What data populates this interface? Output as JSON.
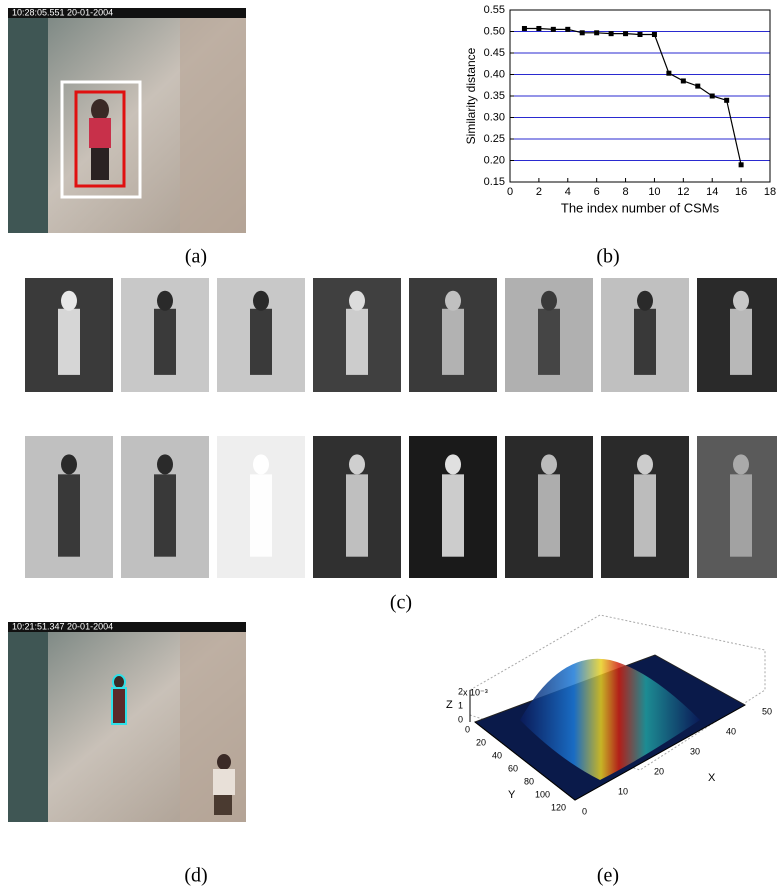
{
  "panels": {
    "a": "(a)",
    "b": "(b)",
    "c": "(c)",
    "d": "(d)",
    "e": "(e)"
  },
  "timestamps": {
    "a": "10:28:05.551   20-01-2004",
    "d": "10:21:51.347   20-01-2004"
  },
  "chart_data": {
    "type": "line",
    "x_label": "The index number of CSMs",
    "y_label": "Similarity distance",
    "x": [
      1,
      2,
      3,
      4,
      5,
      6,
      7,
      8,
      9,
      10,
      11,
      12,
      13,
      14,
      15,
      16
    ],
    "series": [
      {
        "color": "#000000",
        "values": [
          0.507,
          0.507,
          0.505,
          0.505,
          0.497,
          0.497,
          0.495,
          0.495,
          0.493,
          0.493,
          0.403,
          0.385,
          0.373,
          0.35,
          0.34,
          0.19
        ]
      }
    ],
    "xlim": [
      0,
      18
    ],
    "xticks": [
      0,
      2,
      4,
      6,
      8,
      10,
      12,
      14,
      16,
      18
    ],
    "ylim": [
      0.15,
      0.55
    ],
    "yticks": [
      0.15,
      {
        "value": 0.2,
        "label": "0.20"
      },
      0.25,
      {
        "value": 0.3,
        "label": "0.30"
      },
      0.35,
      {
        "value": 0.4,
        "label": "0.40"
      },
      0.45,
      {
        "value": 0.5,
        "label": "0.50"
      },
      0.55
    ],
    "grid": true,
    "grid_color": "#2a2ad0"
  },
  "surface_plot": {
    "z_label": "Z",
    "y_label": "Y",
    "x_label": "X",
    "z_scale": "x 10⁻³",
    "z_ticks": [
      "0",
      "1",
      "2"
    ],
    "y_ticks": [
      "0",
      "20",
      "40",
      "60",
      "80",
      "100",
      "120"
    ],
    "x_ticks": [
      "0",
      "10",
      "20",
      "30",
      "40",
      "50"
    ]
  }
}
